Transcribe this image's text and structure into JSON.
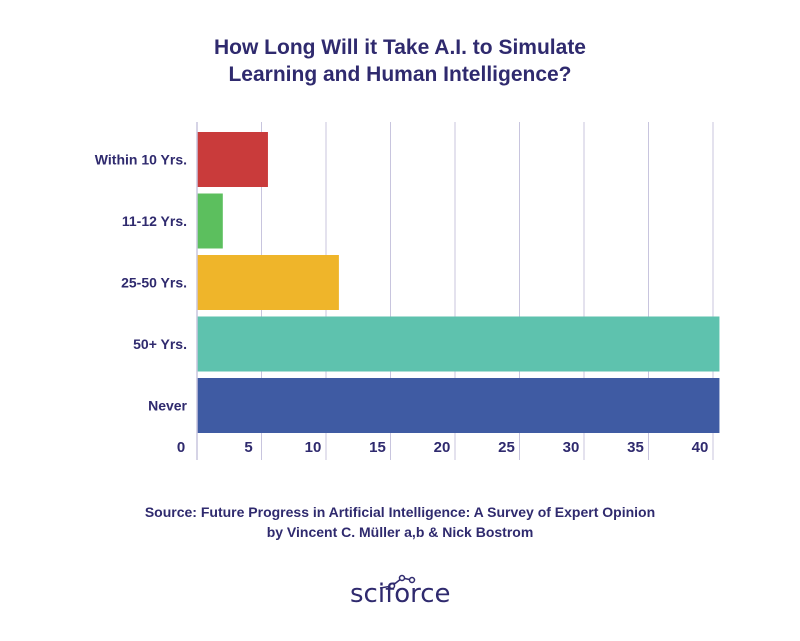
{
  "chart_data": {
    "type": "bar",
    "orientation": "horizontal",
    "title_lines": [
      "How Long Will it Take A.I. to Simulate",
      "Learning and Human Intelligence?"
    ],
    "categories": [
      "Within 10 Yrs.",
      "11-12 Yrs.",
      "25-50 Yrs.",
      "50+ Yrs.",
      "Never"
    ],
    "values": [
      5.5,
      2,
      11,
      40.5,
      40.5
    ],
    "colors": [
      "#c93b3b",
      "#5cbf5e",
      "#efb52a",
      "#5ec2ae",
      "#3f5ba3"
    ],
    "xticks": [
      0,
      5,
      10,
      15,
      20,
      25,
      30,
      35,
      40
    ],
    "xlim": [
      0,
      41
    ],
    "grid": true
  },
  "source": {
    "line1": "Source: Future Progress in Artificial Intelligence: A Survey of Expert Opinion",
    "line2": "by Vincent C. Müller a,b & Nick Bostrom"
  },
  "logo": {
    "text": "sciforce"
  },
  "colors": {
    "text": "#2f2a6e",
    "grid": "#c8c5de"
  }
}
